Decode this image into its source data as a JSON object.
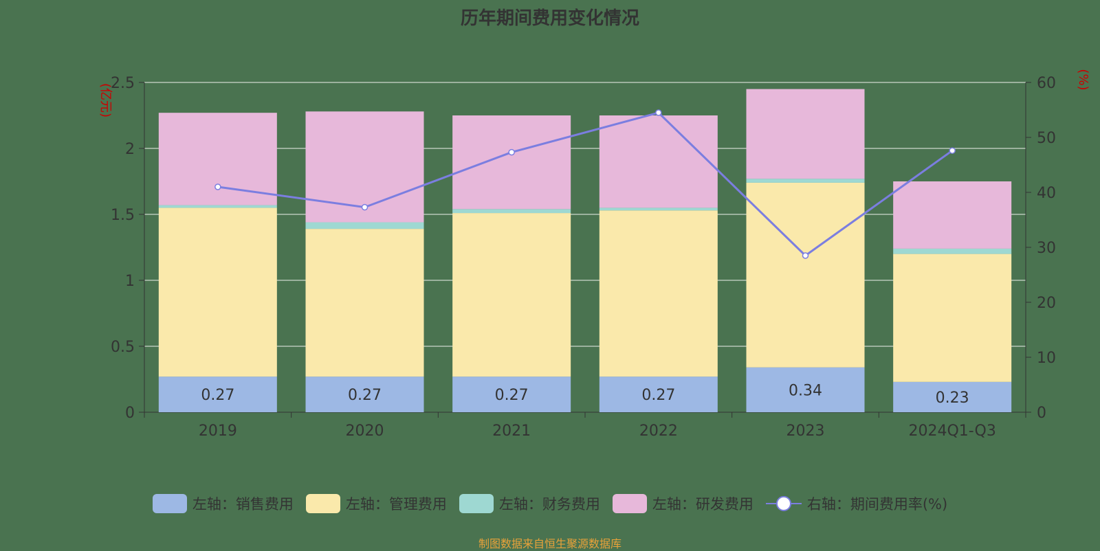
{
  "title": "历年期间费用变化情况",
  "source_note": "制图数据来自恒生聚源数据库",
  "chart_data": {
    "type": "bar",
    "stacked": true,
    "categories": [
      "2019",
      "2020",
      "2021",
      "2022",
      "2023",
      "2024Q1-Q3"
    ],
    "series": [
      {
        "name": "左轴：销售费用",
        "axis": "left",
        "color": "#9db8e4",
        "values": [
          0.27,
          0.27,
          0.27,
          0.27,
          0.34,
          0.23
        ]
      },
      {
        "name": "左轴：管理费用",
        "axis": "left",
        "color": "#fae9ab",
        "values": [
          1.28,
          1.12,
          1.24,
          1.26,
          1.4,
          0.97
        ]
      },
      {
        "name": "左轴：财务费用",
        "axis": "left",
        "color": "#9ed8d2",
        "values": [
          0.02,
          0.05,
          0.03,
          0.02,
          0.03,
          0.04
        ]
      },
      {
        "name": "左轴：研发费用",
        "axis": "left",
        "color": "#e7b8da",
        "values": [
          0.7,
          0.84,
          0.71,
          0.7,
          0.68,
          0.51
        ]
      }
    ],
    "line_series": {
      "name": "右轴：期间费用率(%)",
      "axis": "right",
      "color": "#7b7ee0",
      "values": [
        41.0,
        37.3,
        47.3,
        54.5,
        28.5,
        47.6
      ]
    },
    "data_labels": [
      "0.27",
      "0.27",
      "0.27",
      "0.27",
      "0.34",
      "0.23"
    ],
    "y_left": {
      "label": "(亿元)",
      "range": [
        0,
        2.5
      ],
      "ticks": [
        "0",
        "0.5",
        "1",
        "1.5",
        "2",
        "2.5"
      ]
    },
    "y_right": {
      "label": "(%)",
      "range": [
        0,
        60
      ],
      "ticks": [
        "0",
        "10",
        "20",
        "30",
        "40",
        "50",
        "60"
      ]
    },
    "grid": true,
    "legend_position": "bottom"
  }
}
